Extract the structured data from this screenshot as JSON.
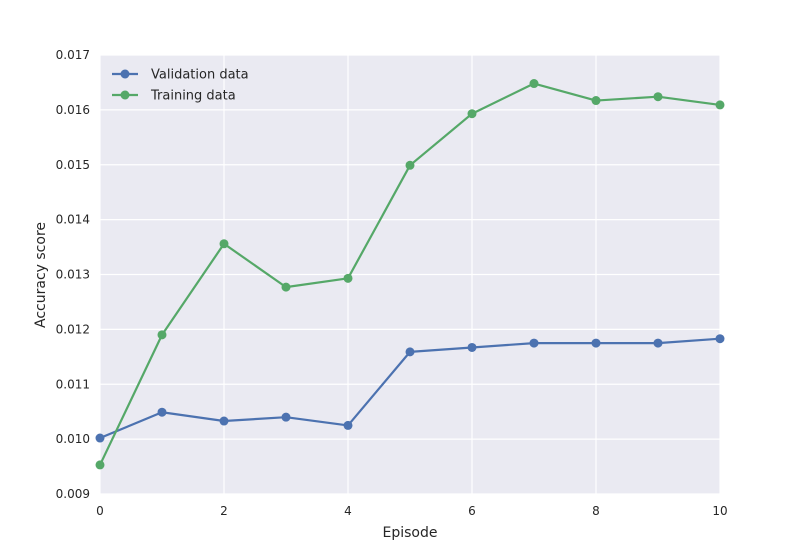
{
  "chart_data": {
    "type": "line",
    "xlabel": "Episode",
    "ylabel": "Accuracy score",
    "xlim": [
      0,
      10
    ],
    "ylim": [
      0.009,
      0.017
    ],
    "xticks": [
      "0",
      "2",
      "4",
      "6",
      "8",
      "10"
    ],
    "yticks": [
      "0.009",
      "0.010",
      "0.011",
      "0.012",
      "0.013",
      "0.014",
      "0.015",
      "0.016",
      "0.017"
    ],
    "grid": true,
    "legend_position": "top-left",
    "x": [
      0,
      1,
      2,
      3,
      4,
      5,
      6,
      7,
      8,
      9,
      10
    ],
    "series": [
      {
        "name": "Validation data",
        "color": "#4c72b0",
        "values": [
          0.01002,
          0.01049,
          0.01033,
          0.0104,
          0.01025,
          0.01159,
          0.01167,
          0.01175,
          0.01175,
          0.01175,
          0.01183
        ]
      },
      {
        "name": "Training data",
        "color": "#55a868",
        "values": [
          0.00953,
          0.0119,
          0.01356,
          0.01277,
          0.01293,
          0.01499,
          0.01593,
          0.01648,
          0.01617,
          0.01624,
          0.01609
        ]
      }
    ]
  }
}
